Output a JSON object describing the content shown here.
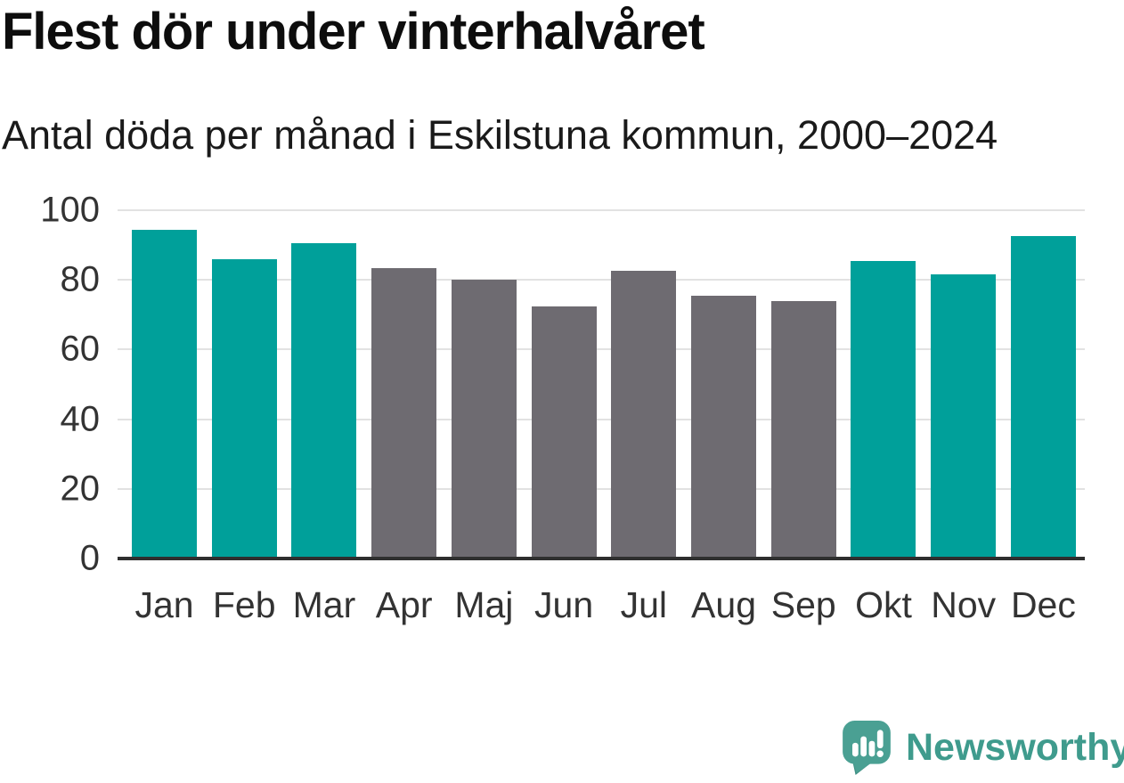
{
  "header": {
    "title": "Flest dör under vinterhalvåret",
    "subtitle": "Antal döda per månad i Eskilstuna kommun, 2000–2024"
  },
  "chart_data": {
    "type": "bar",
    "title": "Flest dör under vinterhalvåret",
    "subtitle": "Antal döda per månad i Eskilstuna kommun, 2000–2024",
    "categories": [
      "Jan",
      "Feb",
      "Mar",
      "Apr",
      "Maj",
      "Jun",
      "Jul",
      "Aug",
      "Sep",
      "Okt",
      "Nov",
      "Dec"
    ],
    "values": [
      94.5,
      86,
      90.5,
      83.5,
      80,
      72.5,
      82.5,
      75.5,
      74,
      85.5,
      81.5,
      92.5
    ],
    "bar_colors": [
      "#00a09a",
      "#00a09a",
      "#00a09a",
      "#6e6b71",
      "#6e6b71",
      "#6e6b71",
      "#6e6b71",
      "#6e6b71",
      "#6e6b71",
      "#00a09a",
      "#00a09a",
      "#00a09a"
    ],
    "highlight_color": "#00a09a",
    "base_color": "#6e6b71",
    "highlighted_categories": [
      "Jan",
      "Feb",
      "Mar",
      "Okt",
      "Nov",
      "Dec"
    ],
    "xlabel": "",
    "ylabel": "",
    "yticks": [
      0,
      20,
      40,
      60,
      80,
      100
    ],
    "ylim": [
      0,
      100
    ],
    "grid": true,
    "legend": false
  },
  "footer": {
    "brand": "Newsworthy",
    "logo_icon": "newsworthy-speech-bubble-chart-icon",
    "brand_text_color": "#3f9b8d",
    "logo_color": "#4aa093",
    "logo_tail_color": "#3f9084"
  },
  "colors": {
    "winter_bar": "#00a09a",
    "summer_bar": "#6e6b71",
    "gridline": "#e2e2e2",
    "axis_line": "#2f2f2f",
    "title_text": "#0d0d0d",
    "tick_text": "#333333",
    "background": "#ffffff"
  }
}
